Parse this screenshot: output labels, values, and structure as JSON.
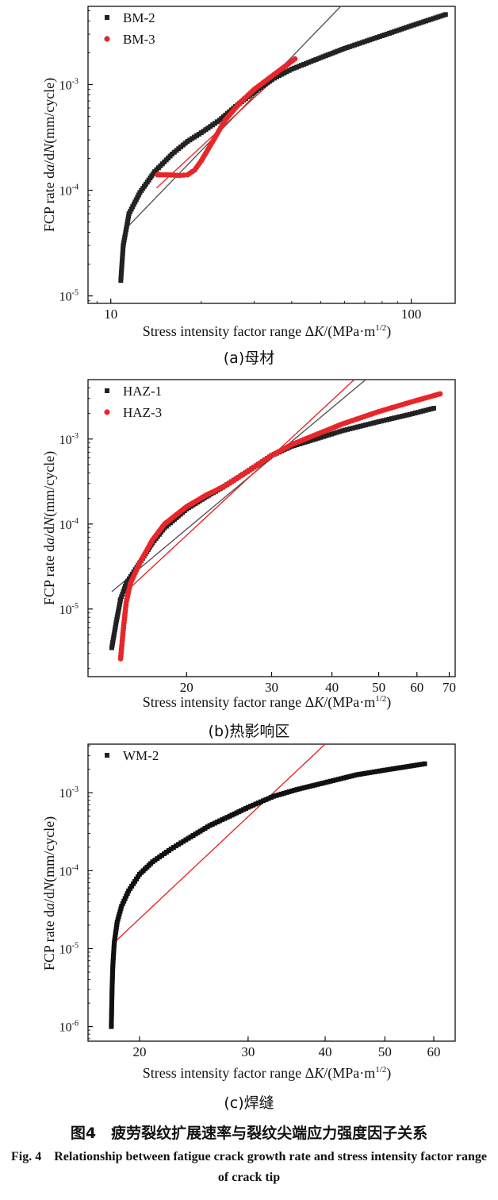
{
  "chart_data": [
    {
      "type": "scatter",
      "panel": "a",
      "caption": "(a)母材",
      "xlabel_prefix": "Stress intensity factor range Δ",
      "xlabel_var": "K",
      "xlabel_unit": "/(MPa·m",
      "xlabel_exp": "1/2",
      "xlabel_close": ")",
      "ylabel_prefix": "FCP rate d",
      "ylabel_a": "a",
      "ylabel_mid": "/d",
      "ylabel_N": "N",
      "ylabel_unit": "(mm/cycle)",
      "xscale": "log",
      "yscale": "log",
      "xlim": [
        8.4,
        140
      ],
      "ylim": [
        8.5e-06,
        0.0055
      ],
      "xticks": [
        {
          "v": 10,
          "label": "10"
        },
        {
          "v": 100,
          "label": "100"
        }
      ],
      "yticks": [
        {
          "v": 1e-05,
          "base": "10",
          "exp": "-5"
        },
        {
          "v": 0.0001,
          "base": "10",
          "exp": "-4"
        },
        {
          "v": 0.001,
          "base": "10",
          "exp": "-3"
        }
      ],
      "legend": [
        {
          "name": "BM-2",
          "color": "#222222",
          "marker": "square"
        },
        {
          "name": "BM-3",
          "color": "#e8262a",
          "marker": "circle"
        }
      ],
      "series": [
        {
          "name": "BM-2",
          "color": "#222222",
          "marker": "square",
          "points": [
            [
              10.8,
              1.4e-05
            ],
            [
              11.0,
              3e-05
            ],
            [
              11.5,
              6e-05
            ],
            [
              12.5,
              9.5e-05
            ],
            [
              14,
              0.00015
            ],
            [
              16,
              0.00022
            ],
            [
              18,
              0.00029
            ],
            [
              20,
              0.00035
            ],
            [
              23,
              0.00046
            ],
            [
              26,
              0.00062
            ],
            [
              30,
              0.00085
            ],
            [
              35,
              0.00115
            ],
            [
              40,
              0.0014
            ],
            [
              50,
              0.0018
            ],
            [
              60,
              0.0022
            ],
            [
              80,
              0.0029
            ],
            [
              100,
              0.0036
            ],
            [
              130,
              0.0046
            ]
          ]
        },
        {
          "name": "BM-3",
          "color": "#e8262a",
          "marker": "circle",
          "points": [
            [
              14.3,
              0.00014
            ],
            [
              15.5,
              0.00014
            ],
            [
              17,
              0.000138
            ],
            [
              18,
              0.00014
            ],
            [
              19,
              0.000155
            ],
            [
              20,
              0.00019
            ],
            [
              22,
              0.0003
            ],
            [
              24,
              0.00046
            ],
            [
              27,
              0.00068
            ],
            [
              30,
              0.0009
            ],
            [
              35,
              0.00125
            ],
            [
              41,
              0.00175
            ]
          ]
        }
      ],
      "fit_lines": [
        {
          "color": "#555555",
          "points": [
            [
              11.2,
              4.3e-05
            ],
            [
              60,
              0.006
            ]
          ]
        },
        {
          "color": "#e8262a",
          "points": [
            [
              14.2,
              0.000105
            ],
            [
              40,
              0.0016
            ]
          ]
        }
      ]
    },
    {
      "type": "scatter",
      "panel": "b",
      "caption": "(b)热影响区",
      "xlabel_prefix": "Stress intensity factor range Δ",
      "xlabel_var": "K",
      "xlabel_unit": "/(MPa·m",
      "xlabel_exp": "1/2",
      "xlabel_close": ")",
      "ylabel_prefix": "FCP rate d",
      "ylabel_a": "a",
      "ylabel_mid": "/d",
      "ylabel_N": "N",
      "ylabel_unit": "(mm/cycle)",
      "xscale": "log",
      "yscale": "log",
      "xlim": [
        12.5,
        72
      ],
      "ylim": [
        1.6e-06,
        0.005
      ],
      "xticks": [
        {
          "v": 20,
          "label": "20"
        },
        {
          "v": 30,
          "label": "30"
        },
        {
          "v": 40,
          "label": "40"
        },
        {
          "v": 50,
          "label": "50"
        },
        {
          "v": 60,
          "label": "60"
        },
        {
          "v": 70,
          "label": "70"
        }
      ],
      "yticks": [
        {
          "v": 1e-05,
          "base": "10",
          "exp": "-5"
        },
        {
          "v": 0.0001,
          "base": "10",
          "exp": "-4"
        },
        {
          "v": 0.001,
          "base": "10",
          "exp": "-3"
        }
      ],
      "legend": [
        {
          "name": "HAZ-1",
          "color": "#222222",
          "marker": "square"
        },
        {
          "name": "HAZ-3",
          "color": "#e8262a",
          "marker": "circle"
        }
      ],
      "series": [
        {
          "name": "HAZ-1",
          "color": "#222222",
          "marker": "square",
          "points": [
            [
              14.0,
              3.5e-06
            ],
            [
              14.3,
              7e-06
            ],
            [
              14.6,
              1.3e-05
            ],
            [
              15.0,
              2e-05
            ],
            [
              16,
              3.5e-05
            ],
            [
              17,
              6e-05
            ],
            [
              18,
              9e-05
            ],
            [
              20,
              0.00015
            ],
            [
              22,
              0.00021
            ],
            [
              24,
              0.00028
            ],
            [
              27,
              0.00043
            ],
            [
              30,
              0.00064
            ],
            [
              33,
              0.00082
            ],
            [
              37,
              0.001
            ],
            [
              42,
              0.00125
            ],
            [
              50,
              0.0016
            ],
            [
              58,
              0.00195
            ],
            [
              65,
              0.0023
            ]
          ]
        },
        {
          "name": "HAZ-3",
          "color": "#e8262a",
          "marker": "circle",
          "points": [
            [
              14.6,
              2.6e-06
            ],
            [
              14.8,
              6e-06
            ],
            [
              15.0,
              1.2e-05
            ],
            [
              15.3,
              2e-05
            ],
            [
              16,
              3.5e-05
            ],
            [
              17,
              6.5e-05
            ],
            [
              18,
              0.0001
            ],
            [
              20,
              0.00016
            ],
            [
              22,
              0.00022
            ],
            [
              24,
              0.00028
            ],
            [
              27,
              0.00043
            ],
            [
              30,
              0.00064
            ],
            [
              33,
              0.00086
            ],
            [
              37,
              0.00112
            ],
            [
              42,
              0.0015
            ],
            [
              50,
              0.0021
            ],
            [
              58,
              0.0027
            ],
            [
              67,
              0.0034
            ]
          ]
        }
      ],
      "fit_lines": [
        {
          "color": "#555555",
          "points": [
            [
              14.0,
              1.6e-05
            ],
            [
              47,
              0.005
            ]
          ]
        },
        {
          "color": "#e8262a",
          "points": [
            [
              14.4,
              1.3e-05
            ],
            [
              44.5,
              0.005
            ]
          ]
        }
      ]
    },
    {
      "type": "scatter",
      "panel": "c",
      "caption": "(c)焊缝",
      "xlabel_prefix": "Stress intensity factor range Δ",
      "xlabel_var": "K",
      "xlabel_unit": "/(MPa·m",
      "xlabel_exp": "1/2",
      "xlabel_close": ")",
      "ylabel_prefix": "FCP rate d",
      "ylabel_a": "a",
      "ylabel_mid": "/d",
      "ylabel_N": "N",
      "ylabel_unit": "(mm/cycle)",
      "xscale": "log",
      "yscale": "log",
      "xlim": [
        16.5,
        65
      ],
      "ylim": [
        6.5e-07,
        0.0042
      ],
      "xticks": [
        {
          "v": 20,
          "label": "20"
        },
        {
          "v": 30,
          "label": "30"
        },
        {
          "v": 40,
          "label": "40"
        },
        {
          "v": 50,
          "label": "50"
        },
        {
          "v": 60,
          "label": "60"
        }
      ],
      "yticks": [
        {
          "v": 1e-06,
          "base": "10",
          "exp": "-6"
        },
        {
          "v": 1e-05,
          "base": "10",
          "exp": "-5"
        },
        {
          "v": 0.0001,
          "base": "10",
          "exp": "-4"
        },
        {
          "v": 0.001,
          "base": "10",
          "exp": "-3"
        }
      ],
      "legend": [
        {
          "name": "WM-2",
          "color": "#222222",
          "marker": "square"
        }
      ],
      "series": [
        {
          "name": "WM-2",
          "color": "#111111",
          "marker": "square",
          "points": [
            [
              18.0,
              1e-06
            ],
            [
              18.05,
              3e-06
            ],
            [
              18.1,
              6e-06
            ],
            [
              18.2,
              1.2e-05
            ],
            [
              18.4,
              2.2e-05
            ],
            [
              18.7,
              3.5e-05
            ],
            [
              19.2,
              5.5e-05
            ],
            [
              20,
              9e-05
            ],
            [
              21,
              0.00013
            ],
            [
              22.5,
              0.00019
            ],
            [
              24,
              0.00026
            ],
            [
              26,
              0.00038
            ],
            [
              28,
              0.0005
            ],
            [
              30,
              0.00065
            ],
            [
              33,
              0.0009
            ],
            [
              36,
              0.0011
            ],
            [
              40,
              0.00135
            ],
            [
              45,
              0.0017
            ],
            [
              50,
              0.00195
            ],
            [
              58,
              0.00235
            ]
          ]
        }
      ],
      "fit_lines": [
        {
          "color": "#e8262a",
          "points": [
            [
              18.2,
              1.2e-05
            ],
            [
              40,
              0.0042
            ]
          ]
        }
      ]
    }
  ],
  "figure": {
    "title_cn": "图4　疲劳裂纹扩展速率与裂纹尖端应力强度因子关系",
    "title_en": "Fig. 4　Relationship between fatigue crack growth rate and stress intensity factor range of crack tip"
  }
}
